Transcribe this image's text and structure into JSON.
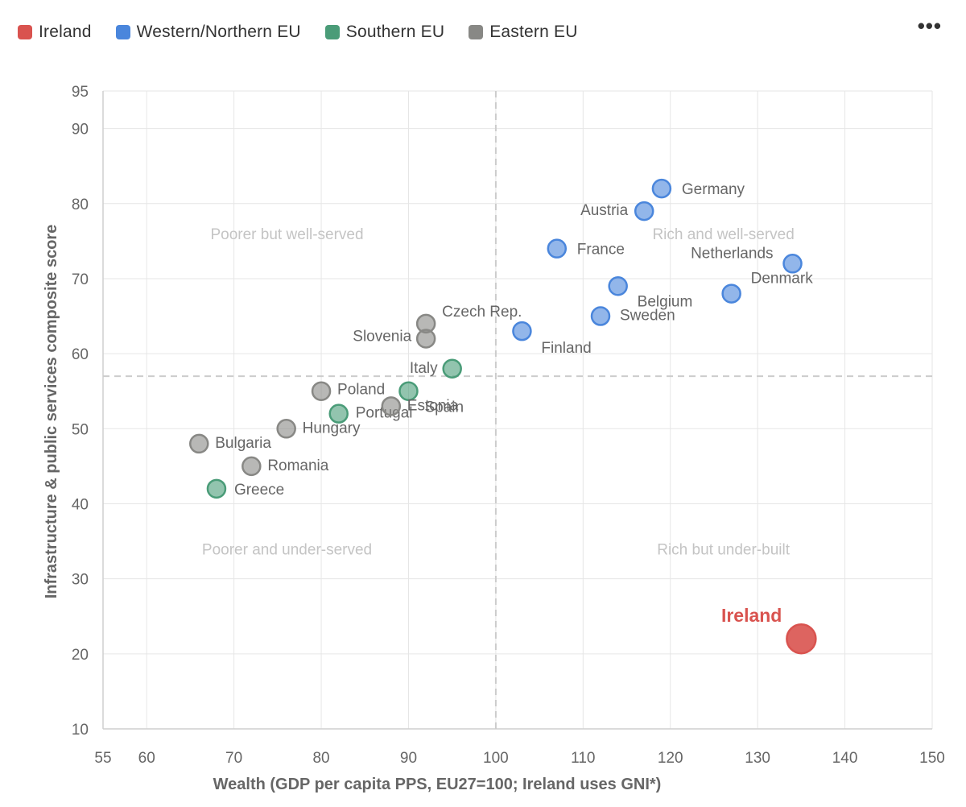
{
  "legend": {
    "items": [
      {
        "label": "Ireland",
        "color": "#d9534f"
      },
      {
        "label": "Western/Northern EU",
        "color": "#4a86dc"
      },
      {
        "label": "Southern EU",
        "color": "#4a9c78"
      },
      {
        "label": "Eastern EU",
        "color": "#888885"
      }
    ]
  },
  "menu": {
    "icon": "more-horizontal-icon",
    "label": "•••"
  },
  "chart_data": {
    "type": "scatter",
    "xlabel": "Wealth (GDP per capita PPS, EU27=100; Ireland uses GNI*)",
    "ylabel": "Infrastructure & public services composite score",
    "xlim": [
      55,
      150
    ],
    "ylim": [
      10,
      95
    ],
    "xticks": [
      55,
      60,
      70,
      80,
      90,
      100,
      110,
      120,
      130,
      140,
      150
    ],
    "yticks": [
      10,
      20,
      30,
      40,
      50,
      60,
      70,
      80,
      90,
      95
    ],
    "grid": true,
    "legend_position": "top-left",
    "reference_lines": {
      "x": 100,
      "y": 57
    },
    "quadrant_labels": [
      {
        "text": "Poorer but well-served",
        "x": 77,
        "y": 76
      },
      {
        "text": "Rich and well-served",
        "x": 127,
        "y": 76
      },
      {
        "text": "Poorer and under-served",
        "x": 77,
        "y": 34
      },
      {
        "text": "Rich but under-built",
        "x": 127,
        "y": 34
      }
    ],
    "series": [
      {
        "name": "Ireland",
        "color": "#d9534f",
        "points": [
          {
            "label": "Ireland",
            "x": 135,
            "y": 22
          }
        ]
      },
      {
        "name": "Western/Northern EU",
        "color": "#4a86dc",
        "points": [
          {
            "label": "Germany",
            "x": 119,
            "y": 82
          },
          {
            "label": "Austria",
            "x": 117,
            "y": 79
          },
          {
            "label": "France",
            "x": 107,
            "y": 74
          },
          {
            "label": "Netherlands",
            "x": 134,
            "y": 72
          },
          {
            "label": "Denmark",
            "x": 127,
            "y": 68
          },
          {
            "label": "Belgium",
            "x": 114,
            "y": 69
          },
          {
            "label": "Sweden",
            "x": 112,
            "y": 65
          },
          {
            "label": "Finland",
            "x": 103,
            "y": 63
          }
        ]
      },
      {
        "name": "Southern EU",
        "color": "#4a9c78",
        "points": [
          {
            "label": "Italy",
            "x": 95,
            "y": 58
          },
          {
            "label": "Spain",
            "x": 90,
            "y": 55
          },
          {
            "label": "Portugal",
            "x": 82,
            "y": 52
          },
          {
            "label": "Greece",
            "x": 68,
            "y": 42
          }
        ]
      },
      {
        "name": "Eastern EU",
        "color": "#888885",
        "points": [
          {
            "label": "Czech Rep.",
            "x": 92,
            "y": 64
          },
          {
            "label": "Slovenia",
            "x": 92,
            "y": 62
          },
          {
            "label": "Poland",
            "x": 80,
            "y": 55
          },
          {
            "label": "Estonia",
            "x": 88,
            "y": 53
          },
          {
            "label": "Hungary",
            "x": 76,
            "y": 50
          },
          {
            "label": "Bulgaria",
            "x": 66,
            "y": 48
          },
          {
            "label": "Romania",
            "x": 72,
            "y": 45
          }
        ]
      }
    ]
  }
}
